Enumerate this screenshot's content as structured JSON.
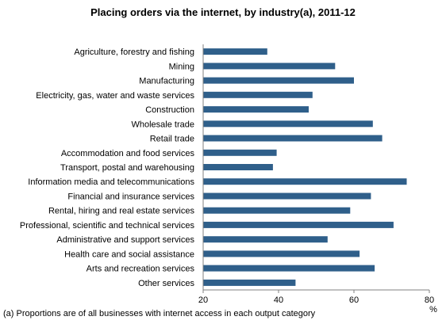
{
  "chart_data": {
    "type": "bar",
    "orientation": "horizontal",
    "title": "Placing orders via the internet, by industry(a), 2011-12",
    "xlabel": "%",
    "ylabel": "",
    "xlim": [
      20,
      80
    ],
    "xticks": [
      20,
      40,
      60,
      80
    ],
    "grid": false,
    "bar_color": "#2f5f8a",
    "categories": [
      "Agriculture, forestry and fishing",
      "Mining",
      "Manufacturing",
      "Electricity, gas, water and waste services",
      "Construction",
      "Wholesale trade",
      "Retail trade",
      "Accommodation and food services",
      "Transport, postal and warehousing",
      "Information media and telecommunications",
      "Financial and insurance services",
      "Rental, hiring and real estate services",
      "Professional, scientific and technical services",
      "Administrative and support services",
      "Health care and social assistance",
      "Arts and recreation services",
      "Other services"
    ],
    "values": [
      37,
      55,
      60,
      49,
      48,
      65,
      67.5,
      39.5,
      38.5,
      74,
      64.5,
      59,
      70.5,
      53,
      61.5,
      65.5,
      44.5
    ],
    "footnote": "(a) Proportions are of all businesses with internet access in each output category"
  }
}
